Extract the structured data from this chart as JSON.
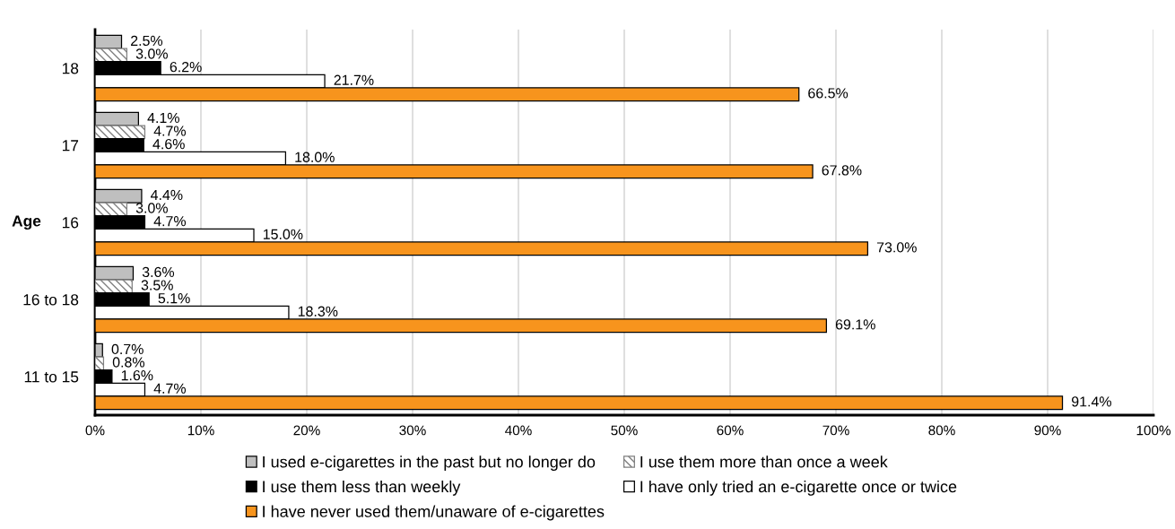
{
  "chart_data": {
    "type": "bar",
    "orientation": "horizontal",
    "ylabel": "Age",
    "categories": [
      "18",
      "17",
      "16",
      "16 to 18",
      "11 to 15"
    ],
    "series": [
      {
        "name": "I used e-cigarettes in the past but no longer do",
        "color": "#bfbfbf",
        "values": [
          2.5,
          4.1,
          4.4,
          3.6,
          0.7
        ],
        "value_labels": [
          "2.5%",
          "4.1%",
          "4.4%",
          "3.6%",
          "0.7%"
        ]
      },
      {
        "name": "I use them more than once a week",
        "color": "#808080",
        "values": [
          3.0,
          4.7,
          3.0,
          3.5,
          0.8
        ],
        "value_labels": [
          "3.0%",
          "4.7%",
          "3.0%",
          "3.5%",
          "0.8%"
        ]
      },
      {
        "name": "I use them less than weekly",
        "color": "#000000",
        "values": [
          6.2,
          4.6,
          4.7,
          5.1,
          1.6
        ],
        "value_labels": [
          "6.2%",
          "4.6%",
          "4.7%",
          "5.1%",
          "1.6%"
        ]
      },
      {
        "name": "I have only tried an e-cigarette once or twice",
        "color": "#ffffff",
        "values": [
          21.7,
          18.0,
          15.0,
          18.3,
          4.7
        ],
        "value_labels": [
          "21.7%",
          "18.0%",
          "15.0%",
          "18.3%",
          "4.7%"
        ]
      },
      {
        "name": "I have never used them/unaware of e-cigarettes",
        "color": "#f7941d",
        "values": [
          66.5,
          67.8,
          73.0,
          69.1,
          91.4
        ],
        "value_labels": [
          "66.5%",
          "67.8%",
          "73.0%",
          "69.1%",
          "91.4%"
        ]
      }
    ],
    "xlim": [
      0,
      100
    ],
    "xticks": [
      {
        "value": 0,
        "label": "0%"
      },
      {
        "value": 10,
        "label": "10%"
      },
      {
        "value": 20,
        "label": "20%"
      },
      {
        "value": 30,
        "label": "30%"
      },
      {
        "value": 40,
        "label": "40%"
      },
      {
        "value": 50,
        "label": "50%"
      },
      {
        "value": 60,
        "label": "60%"
      },
      {
        "value": 70,
        "label": "70%"
      },
      {
        "value": 80,
        "label": "80%"
      },
      {
        "value": 90,
        "label": "90%"
      },
      {
        "value": 100,
        "label": "100%"
      }
    ],
    "grid": "x",
    "legend": "bottom"
  }
}
